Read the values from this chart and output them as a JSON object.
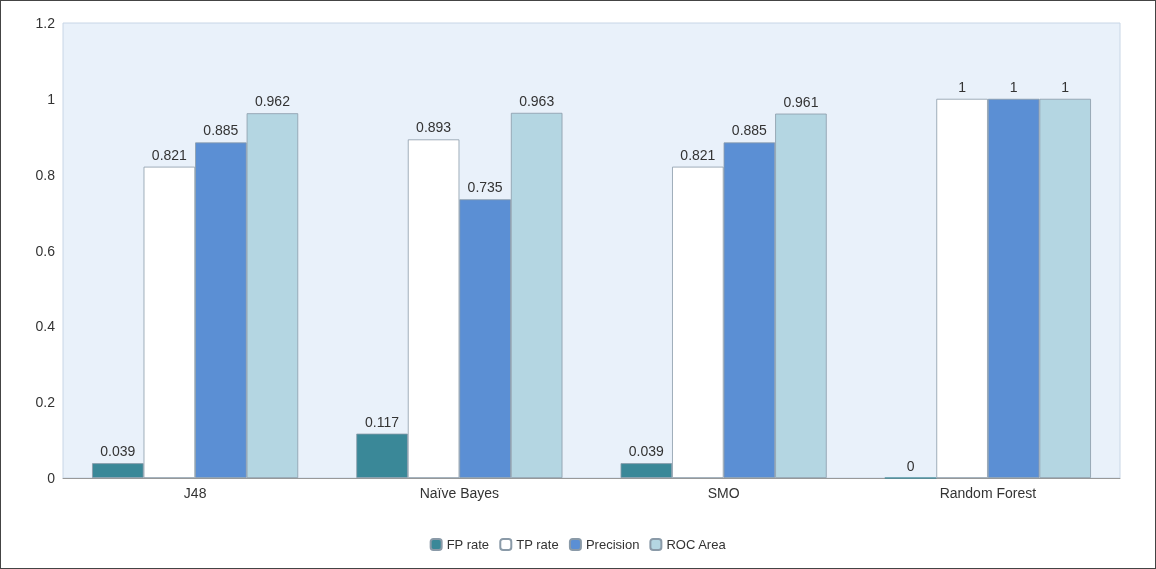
{
  "chart_data": {
    "type": "bar",
    "categories": [
      "J48",
      "Naïve Bayes",
      "SMO",
      "Random Forest"
    ],
    "series": [
      {
        "name": "FP rate",
        "color": "#3a8898",
        "values": [
          0.039,
          0.117,
          0.039,
          0
        ]
      },
      {
        "name": "TP rate",
        "color": "#ffffff",
        "values": [
          0.821,
          0.893,
          0.821,
          1
        ]
      },
      {
        "name": "Precision",
        "color": "#5b8fd4",
        "values": [
          0.885,
          0.735,
          0.885,
          1
        ]
      },
      {
        "name": "ROC Area",
        "color": "#b4d6e2",
        "values": [
          0.962,
          0.963,
          0.961,
          1
        ]
      }
    ],
    "ylim": [
      0,
      1.2
    ],
    "yticks": [
      0,
      0.2,
      0.4,
      0.6,
      0.8,
      1,
      1.2
    ],
    "grid": false,
    "legend": "bottom",
    "data_labels": true
  }
}
